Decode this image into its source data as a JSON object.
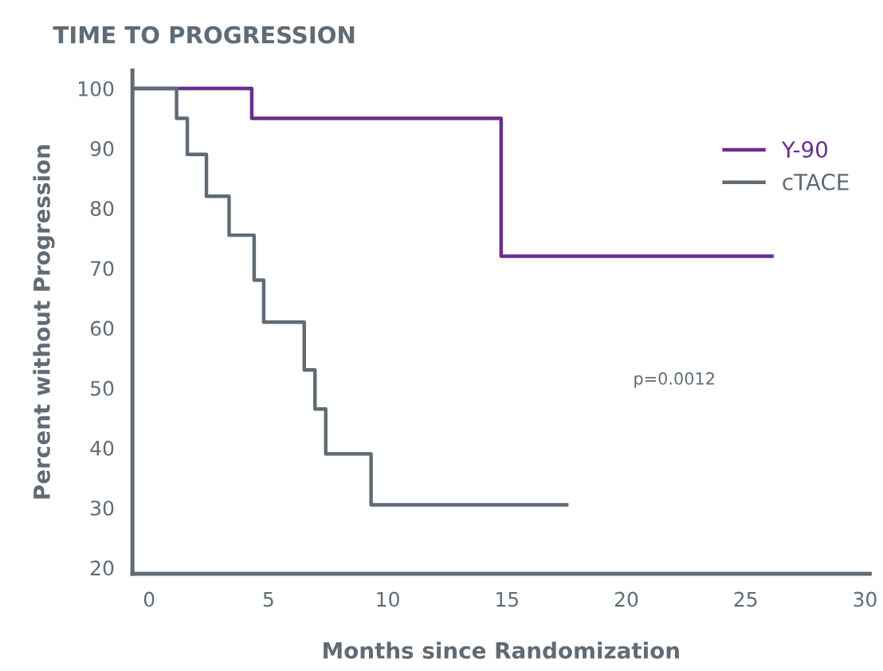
{
  "chart_data": {
    "type": "step",
    "title": "TIME TO PROGRESSION",
    "xlabel": "Months since Randomization",
    "ylabel": "Percent without Progression",
    "xlim": [
      -0.7,
      30.2
    ],
    "xticks": [
      0,
      5,
      10,
      15,
      20,
      25,
      30
    ],
    "ylim": [
      19,
      103
    ],
    "yticks": [
      20,
      30,
      40,
      50,
      60,
      70,
      80,
      90,
      100
    ],
    "series": [
      {
        "name": "Y-90",
        "color": "#6a2c91",
        "x": [
          -0.7,
          4.3,
          14.75,
          26.1
        ],
        "values": [
          100,
          95,
          72,
          72
        ]
      },
      {
        "name": "cTACE",
        "color": "#5f6b75",
        "x": [
          -0.7,
          1.15,
          1.6,
          2.4,
          3.35,
          4.4,
          4.8,
          6.5,
          6.95,
          7.4,
          9.3,
          17.5
        ],
        "values": [
          100,
          95,
          89,
          82,
          75.5,
          68,
          61,
          53,
          46.5,
          39,
          30.5,
          30.5
        ]
      }
    ],
    "annotations": [
      "p=0.0012"
    ],
    "legend": "top right",
    "grid": false,
    "line_style": "solid",
    "marker": "none"
  }
}
